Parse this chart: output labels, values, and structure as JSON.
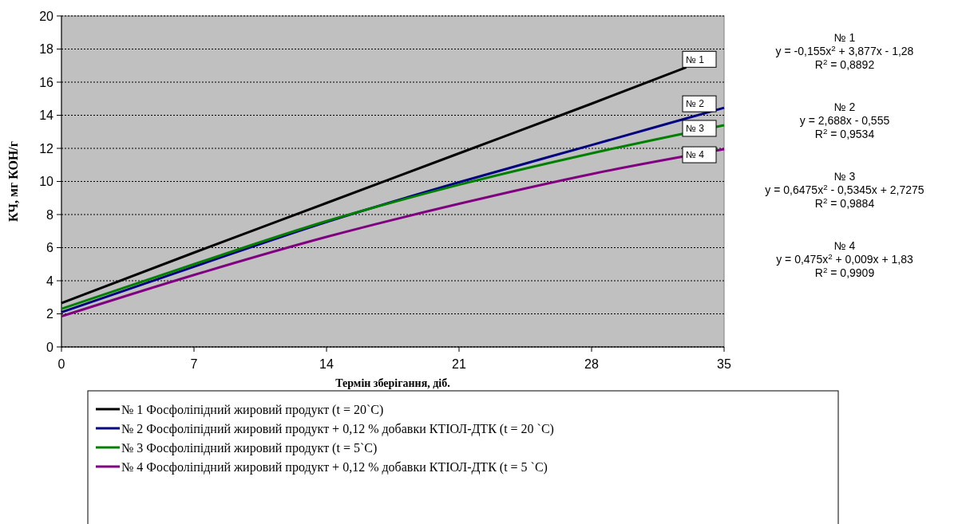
{
  "chart_data": {
    "type": "line",
    "xlabel": "Термін зберігання, діб.",
    "ylabel": "КЧ, мг КОН/г",
    "xlim": [
      0,
      35
    ],
    "xticks": [
      0,
      7,
      14,
      21,
      28,
      35
    ],
    "ylim": [
      0,
      20
    ],
    "yticks": [
      0,
      2,
      4,
      6,
      8,
      10,
      12,
      14,
      16,
      18,
      20
    ],
    "grid": "y",
    "legend": "bottom",
    "marker": "none",
    "line_style": "solid",
    "series": [
      {
        "name": "№ 1 Фосфоліпідний жировий продукт (t = 20`C)",
        "color": "#000000",
        "x": [
          0,
          7,
          14,
          21,
          28,
          33
        ],
        "values": [
          2.65,
          5.7,
          8.7,
          11.7,
          14.7,
          16.9
        ]
      },
      {
        "name": "№ 2 Фосфоліпідний жировий продукт + 0,12 % добавки КТІОЛ-ДТК (t = 20 `C)",
        "color": "#000080",
        "x": [
          0,
          7,
          14,
          21,
          28,
          35
        ],
        "values": [
          2.1,
          4.85,
          7.55,
          9.95,
          12.2,
          14.45
        ]
      },
      {
        "name": "№ 3 Фосфоліпідний жировий продукт (t = 5`C)",
        "color": "#008000",
        "x": [
          0,
          7,
          14,
          21,
          28,
          35
        ],
        "values": [
          2.3,
          5.0,
          7.6,
          9.8,
          11.7,
          13.4
        ]
      },
      {
        "name": "№ 4 Фосфоліпідний жировий продукт + 0,12 % добавки КТІОЛ-ДТК (t = 5 `C)",
        "color": "#800080",
        "x": [
          0,
          7,
          14,
          21,
          28,
          35
        ],
        "values": [
          1.85,
          4.35,
          6.65,
          8.65,
          10.45,
          11.95
        ]
      }
    ],
    "annotations": [
      "№ 1",
      "№ 2",
      "№ 3",
      "№ 4",
      "№ 1",
      "y = -0,155x$^{2}$ + 3,877x - 1,28",
      "R$^{2}$ = 0,8892",
      "№ 2",
      "y = 2,688x - 0,555",
      "R$^{2}$ = 0,9534",
      "№ 3",
      "y = 0,6475x$^{2}$ - 0,5345x + 2,7275",
      "R$^{2}$ = 0,9884",
      "№ 4",
      "y = 0,475x$^{2}$ + 0,009x + 1,83",
      "R$^{2}$ = 0,9909"
    ]
  }
}
